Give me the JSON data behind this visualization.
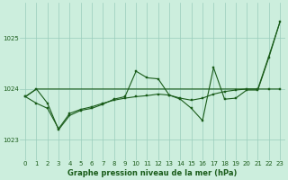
{
  "title": "Graphe pression niveau de la mer (hPa)",
  "bg_color": "#cceedd",
  "grid_color": "#99ccbb",
  "line_color": "#1a5c1a",
  "x_values": [
    0,
    1,
    2,
    3,
    4,
    5,
    6,
    7,
    8,
    9,
    10,
    11,
    12,
    13,
    14,
    15,
    16,
    17,
    18,
    19,
    20,
    21,
    22,
    23
  ],
  "series_jagged": [
    1023.85,
    1024.0,
    1023.72,
    1023.2,
    1023.48,
    1023.58,
    1023.62,
    1023.7,
    1023.8,
    1023.85,
    1024.35,
    1024.22,
    1024.2,
    1023.88,
    1023.8,
    1023.62,
    1023.38,
    1024.42,
    1023.8,
    1023.82,
    1023.98,
    1023.98,
    1024.62,
    1025.32
  ],
  "series_smooth": [
    1023.85,
    1023.72,
    1023.62,
    1023.22,
    1023.52,
    1023.6,
    1023.65,
    1023.72,
    1023.78,
    1023.82,
    1023.85,
    1023.87,
    1023.9,
    1023.88,
    1023.82,
    1023.78,
    1023.82,
    1023.9,
    1023.95,
    1023.98,
    1024.0,
    1024.0,
    1024.0,
    1024.0
  ],
  "series_trend": [
    1023.85,
    1024.0,
    1024.0,
    1024.0,
    1024.0,
    1024.0,
    1024.0,
    1024.0,
    1024.0,
    1024.0,
    1024.0,
    1024.0,
    1024.0,
    1024.0,
    1024.0,
    1024.0,
    1024.0,
    1024.0,
    1024.0,
    1024.0,
    1024.0,
    1024.0,
    1024.65,
    1025.32
  ],
  "ylim_min": 1022.6,
  "ylim_max": 1025.7,
  "yticks": [
    1023,
    1024,
    1025
  ],
  "xticks": [
    0,
    1,
    2,
    3,
    4,
    5,
    6,
    7,
    8,
    9,
    10,
    11,
    12,
    13,
    14,
    15,
    16,
    17,
    18,
    19,
    20,
    21,
    22,
    23
  ],
  "tick_fontsize": 5.0,
  "xlabel_fontsize": 6.0
}
